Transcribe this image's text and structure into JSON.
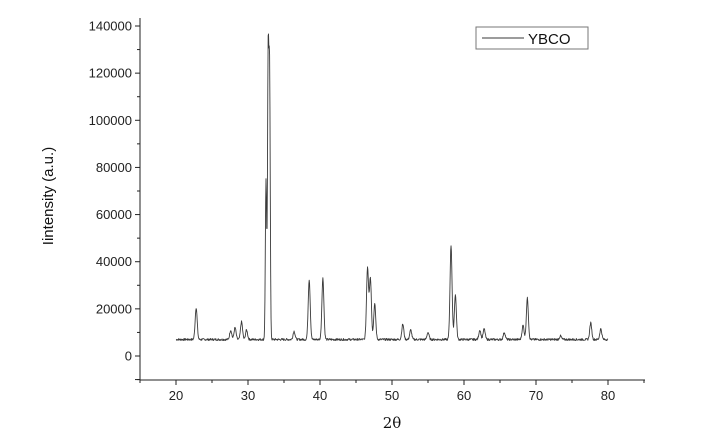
{
  "chart_data": {
    "type": "line",
    "xlabel": "2θ",
    "ylabel": "Iintensity (a.u.)",
    "xlim": [
      15,
      85
    ],
    "ylim": [
      -10000,
      140000
    ],
    "xticks": [
      "20",
      "30",
      "40",
      "50",
      "60",
      "70",
      "80"
    ],
    "yticks": [
      "0",
      "20000",
      "40000",
      "60000",
      "80000",
      "100000",
      "120000",
      "140000"
    ],
    "grid": false,
    "legend_position": "top-right",
    "series": [
      {
        "name": "YBCO",
        "color": "#3a3a3a",
        "baseline": 7000,
        "x_range": [
          20,
          80
        ],
        "peaks": [
          {
            "x": 22.8,
            "y": 20500
          },
          {
            "x": 27.6,
            "y": 11000
          },
          {
            "x": 28.2,
            "y": 12000
          },
          {
            "x": 29.1,
            "y": 14500
          },
          {
            "x": 29.8,
            "y": 11000
          },
          {
            "x": 32.5,
            "y": 75000
          },
          {
            "x": 32.8,
            "y": 126000
          },
          {
            "x": 33.0,
            "y": 118000
          },
          {
            "x": 36.4,
            "y": 10500
          },
          {
            "x": 38.5,
            "y": 32500
          },
          {
            "x": 40.4,
            "y": 33000
          },
          {
            "x": 46.6,
            "y": 37500
          },
          {
            "x": 47.0,
            "y": 33000
          },
          {
            "x": 47.6,
            "y": 22000
          },
          {
            "x": 51.5,
            "y": 13500
          },
          {
            "x": 52.6,
            "y": 11000
          },
          {
            "x": 55.0,
            "y": 10000
          },
          {
            "x": 58.2,
            "y": 47000
          },
          {
            "x": 58.8,
            "y": 26000
          },
          {
            "x": 62.2,
            "y": 11000
          },
          {
            "x": 62.8,
            "y": 11500
          },
          {
            "x": 65.6,
            "y": 10000
          },
          {
            "x": 68.2,
            "y": 13000
          },
          {
            "x": 68.8,
            "y": 24500
          },
          {
            "x": 73.4,
            "y": 8500
          },
          {
            "x": 77.6,
            "y": 14000
          },
          {
            "x": 79.0,
            "y": 11500
          }
        ]
      }
    ]
  }
}
